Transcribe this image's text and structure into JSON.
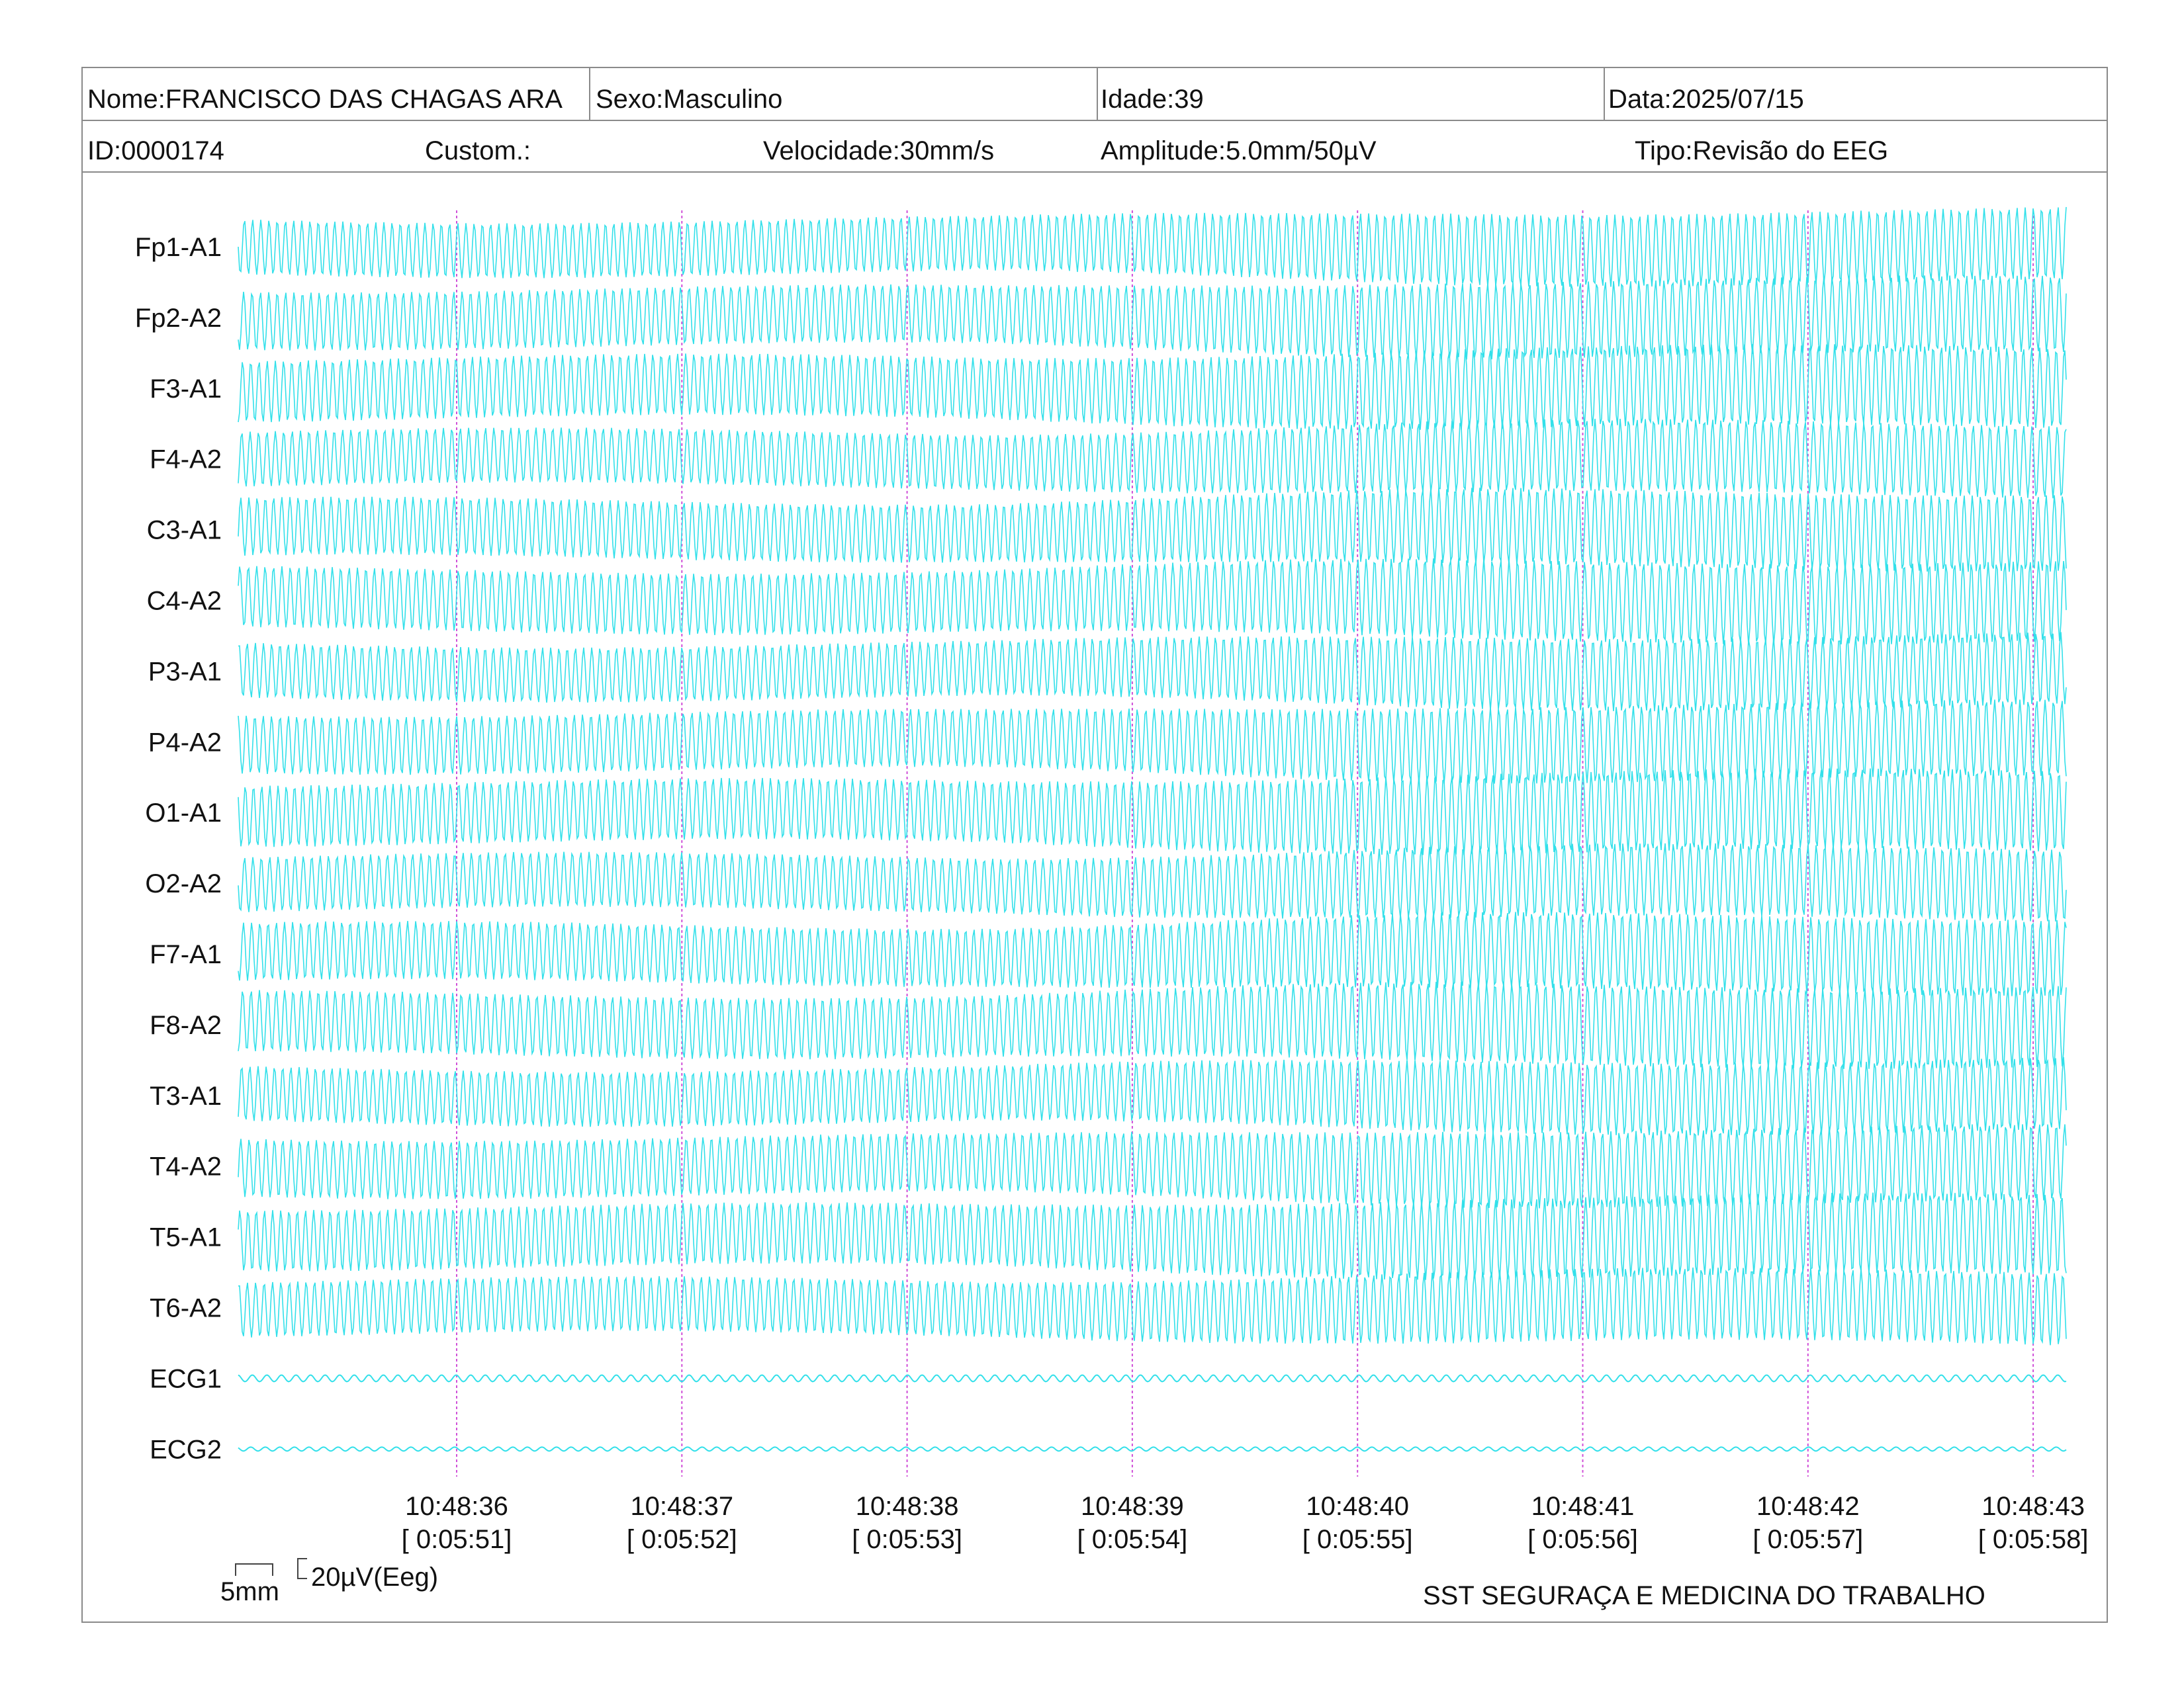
{
  "header": {
    "name_label": "Nome:",
    "name_value": "FRANCISCO DAS CHAGAS ARA",
    "sex_label": "Sexo:",
    "sex_value": "Masculino",
    "age_label": "Idade:",
    "age_value": "39",
    "date_label": "Data:",
    "date_value": "2025/07/15",
    "id_label": "ID:",
    "id_value": "0000174",
    "custom_label": "Custom.:",
    "custom_value": "",
    "speed_label": "Velocidade:",
    "speed_value": "30mm/s",
    "amplitude_label": "Amplitude:",
    "amplitude_value": "5.0mm/50µV",
    "type_label": "Tipo:",
    "type_value": "Revisão do EEG"
  },
  "channels": [
    "Fp1-A1",
    "Fp2-A2",
    "F3-A1",
    "F4-A2",
    "C3-A1",
    "C4-A2",
    "P3-A1",
    "P4-A2",
    "O1-A1",
    "O2-A2",
    "F7-A1",
    "F8-A2",
    "T3-A1",
    "T4-A2",
    "T5-A1",
    "T6-A2",
    "ECG1",
    "ECG2"
  ],
  "time_markers": [
    {
      "clock": "10:48:36",
      "elapsed": "[ 0:05:51]"
    },
    {
      "clock": "10:48:37",
      "elapsed": "[ 0:05:52]"
    },
    {
      "clock": "10:48:38",
      "elapsed": "[ 0:05:53]"
    },
    {
      "clock": "10:48:39",
      "elapsed": "[ 0:05:54]"
    },
    {
      "clock": "10:48:40",
      "elapsed": "[ 0:05:55]"
    },
    {
      "clock": "10:48:41",
      "elapsed": "[ 0:05:56]"
    },
    {
      "clock": "10:48:42",
      "elapsed": "[ 0:05:57]"
    },
    {
      "clock": "10:48:43",
      "elapsed": "[ 0:05:58]"
    }
  ],
  "scale": {
    "time_label": "5mm",
    "amplitude_label": "20µV(Eeg)"
  },
  "footer": {
    "org": "SST SEGURAÇA E MEDICINA DO TRABALHO"
  },
  "colors": {
    "trace": "#33e0ea",
    "marker_line": "#d050d8",
    "border": "#8a8a8a"
  }
}
